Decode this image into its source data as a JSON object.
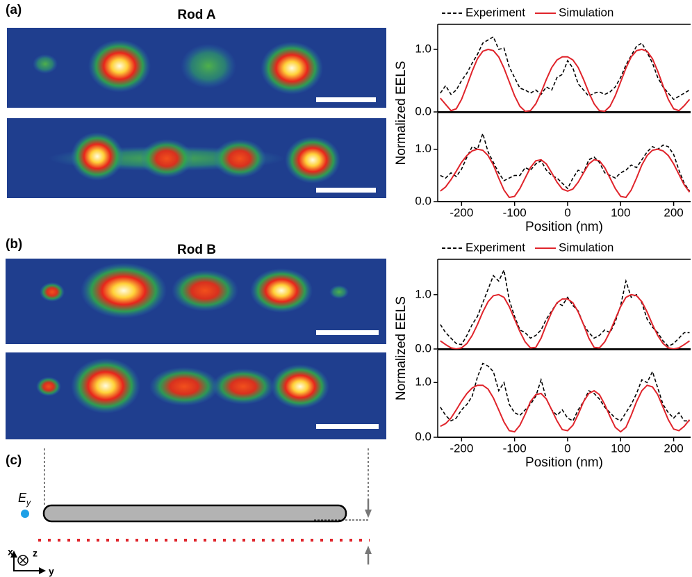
{
  "figure": {
    "panels": [
      "(a)",
      "(b)",
      "(c)"
    ],
    "rod_titles": [
      "Rod A",
      "Rod B"
    ],
    "diagram": {
      "field": "E",
      "field_sub": "y",
      "axis_x": "x",
      "axis_z": "z",
      "axis_y": "y"
    }
  },
  "chart_data": [
    {
      "type": "line",
      "ylabel": "Normalized EELS",
      "legend": "top",
      "x": [
        -240,
        -230,
        -220,
        -210,
        -200,
        -190,
        -180,
        -170,
        -160,
        -150,
        -140,
        -130,
        -120,
        -110,
        -100,
        -90,
        -80,
        -70,
        -60,
        -50,
        -40,
        -30,
        -20,
        -10,
        0,
        10,
        20,
        30,
        40,
        50,
        60,
        70,
        80,
        90,
        100,
        110,
        120,
        130,
        140,
        150,
        160,
        170,
        180,
        190,
        200,
        210,
        220,
        230
      ],
      "xlim": [
        -245,
        232
      ],
      "ylim": [
        0,
        1.4
      ],
      "yticks": [
        {
          "value": 0,
          "label": "0.0"
        },
        {
          "value": 1,
          "label": "1.0"
        }
      ],
      "series": [
        {
          "name": "Experiment",
          "color": "#000000",
          "linestyle": "dashed",
          "values": [
            0.3,
            0.42,
            0.28,
            0.35,
            0.5,
            0.62,
            0.78,
            0.92,
            1.1,
            1.15,
            1.2,
            1.0,
            1.02,
            0.72,
            0.55,
            0.38,
            0.35,
            0.3,
            0.35,
            0.28,
            0.4,
            0.35,
            0.55,
            0.6,
            0.82,
            0.7,
            0.45,
            0.35,
            0.25,
            0.3,
            0.32,
            0.28,
            0.32,
            0.4,
            0.55,
            0.75,
            0.9,
            1.05,
            1.1,
            0.95,
            0.78,
            0.55,
            0.4,
            0.3,
            0.2,
            0.25,
            0.3,
            0.35
          ]
        },
        {
          "name": "Simulation",
          "color": "#e0242b",
          "linestyle": "solid",
          "values": [
            0.22,
            0.12,
            0.02,
            0.05,
            0.2,
            0.42,
            0.65,
            0.85,
            0.97,
            1.0,
            0.98,
            0.88,
            0.7,
            0.48,
            0.26,
            0.09,
            0.01,
            0.02,
            0.13,
            0.31,
            0.52,
            0.71,
            0.83,
            0.88,
            0.88,
            0.83,
            0.71,
            0.52,
            0.31,
            0.13,
            0.02,
            0.01,
            0.09,
            0.26,
            0.48,
            0.7,
            0.88,
            0.98,
            1.0,
            0.97,
            0.85,
            0.65,
            0.42,
            0.2,
            0.05,
            0.02,
            0.1,
            0.2
          ]
        }
      ]
    },
    {
      "type": "line",
      "xlabel": "Position (nm)",
      "x": [
        -240,
        -230,
        -220,
        -210,
        -200,
        -190,
        -180,
        -170,
        -160,
        -150,
        -140,
        -130,
        -120,
        -110,
        -100,
        -90,
        -80,
        -70,
        -60,
        -50,
        -40,
        -30,
        -20,
        -10,
        0,
        10,
        20,
        30,
        40,
        50,
        60,
        70,
        80,
        90,
        100,
        110,
        120,
        130,
        140,
        150,
        160,
        170,
        180,
        190,
        200,
        210,
        220,
        230
      ],
      "xlim": [
        -245,
        232
      ],
      "ylim": [
        0,
        1.7
      ],
      "xticks": [
        -200,
        -100,
        0,
        100,
        200
      ],
      "yticks": [
        {
          "value": 0,
          "label": "0.0"
        },
        {
          "value": 1,
          "label": "1.0"
        }
      ],
      "series": [
        {
          "color": "#000000",
          "linestyle": "dashed",
          "values": [
            0.5,
            0.45,
            0.55,
            0.48,
            0.62,
            0.85,
            1.05,
            1.0,
            1.3,
            0.95,
            0.75,
            0.55,
            0.4,
            0.45,
            0.5,
            0.5,
            0.65,
            0.6,
            0.72,
            0.78,
            0.6,
            0.5,
            0.45,
            0.35,
            0.25,
            0.45,
            0.6,
            0.55,
            0.8,
            0.85,
            0.75,
            0.55,
            0.5,
            0.45,
            0.55,
            0.6,
            0.7,
            0.65,
            0.8,
            0.95,
            1.05,
            1.0,
            1.08,
            1.05,
            0.9,
            0.6,
            0.35,
            0.2
          ]
        },
        {
          "color": "#e0242b",
          "linestyle": "solid",
          "values": [
            0.2,
            0.28,
            0.42,
            0.58,
            0.75,
            0.88,
            0.97,
            1.0,
            0.98,
            0.88,
            0.7,
            0.45,
            0.22,
            0.08,
            0.1,
            0.25,
            0.45,
            0.65,
            0.78,
            0.8,
            0.72,
            0.55,
            0.37,
            0.24,
            0.2,
            0.24,
            0.37,
            0.55,
            0.72,
            0.8,
            0.78,
            0.65,
            0.45,
            0.25,
            0.1,
            0.08,
            0.22,
            0.45,
            0.7,
            0.88,
            0.98,
            1.0,
            0.97,
            0.88,
            0.72,
            0.52,
            0.32,
            0.18
          ]
        }
      ]
    },
    {
      "type": "line",
      "ylabel": "Normalized EELS",
      "legend": "top",
      "x": [
        -240,
        -230,
        -220,
        -210,
        -200,
        -190,
        -180,
        -170,
        -160,
        -150,
        -140,
        -130,
        -120,
        -110,
        -100,
        -90,
        -80,
        -70,
        -60,
        -50,
        -40,
        -30,
        -20,
        -10,
        0,
        10,
        20,
        30,
        40,
        50,
        60,
        70,
        80,
        90,
        100,
        110,
        120,
        130,
        140,
        150,
        160,
        170,
        180,
        190,
        200,
        210,
        220,
        230
      ],
      "xlim": [
        -245,
        232
      ],
      "ylim": [
        0,
        1.65
      ],
      "yticks": [
        {
          "value": 0,
          "label": "0.0"
        },
        {
          "value": 1,
          "label": "1.0"
        }
      ],
      "series": [
        {
          "name": "Experiment",
          "color": "#000000",
          "linestyle": "dashed",
          "values": [
            0.45,
            0.3,
            0.2,
            0.1,
            0.08,
            0.25,
            0.45,
            0.6,
            0.85,
            1.1,
            1.35,
            1.25,
            1.45,
            0.9,
            0.6,
            0.35,
            0.3,
            0.2,
            0.25,
            0.35,
            0.55,
            0.7,
            0.85,
            0.8,
            0.95,
            0.8,
            0.7,
            0.45,
            0.3,
            0.2,
            0.25,
            0.35,
            0.3,
            0.5,
            0.8,
            1.25,
            0.95,
            1.0,
            0.85,
            0.55,
            0.4,
            0.3,
            0.15,
            0.05,
            0.1,
            0.2,
            0.3,
            0.3
          ]
        },
        {
          "name": "Simulation",
          "color": "#e0242b",
          "linestyle": "solid",
          "values": [
            0.15,
            0.08,
            0.02,
            0.0,
            0.02,
            0.1,
            0.25,
            0.45,
            0.68,
            0.87,
            0.98,
            1.0,
            0.95,
            0.78,
            0.55,
            0.32,
            0.13,
            0.02,
            0.03,
            0.2,
            0.45,
            0.68,
            0.85,
            0.92,
            0.92,
            0.85,
            0.68,
            0.45,
            0.2,
            0.03,
            0.02,
            0.13,
            0.32,
            0.55,
            0.78,
            0.95,
            1.0,
            0.98,
            0.87,
            0.68,
            0.45,
            0.25,
            0.1,
            0.02,
            0.0,
            0.02,
            0.08,
            0.15
          ]
        }
      ]
    },
    {
      "type": "line",
      "xlabel": "Position (nm)",
      "x": [
        -240,
        -230,
        -220,
        -210,
        -200,
        -190,
        -180,
        -170,
        -160,
        -150,
        -140,
        -130,
        -120,
        -110,
        -100,
        -90,
        -80,
        -70,
        -60,
        -50,
        -40,
        -30,
        -20,
        -10,
        0,
        10,
        20,
        30,
        40,
        50,
        60,
        70,
        80,
        90,
        100,
        110,
        120,
        130,
        140,
        150,
        160,
        170,
        180,
        190,
        200,
        210,
        220,
        230
      ],
      "xlim": [
        -245,
        232
      ],
      "ylim": [
        0,
        1.6
      ],
      "xticks": [
        -200,
        -100,
        0,
        100,
        200
      ],
      "yticks": [
        {
          "value": 0,
          "label": "0.0"
        },
        {
          "value": 1,
          "label": "1.0"
        }
      ],
      "series": [
        {
          "color": "#000000",
          "linestyle": "dashed",
          "values": [
            0.55,
            0.4,
            0.3,
            0.35,
            0.5,
            0.6,
            0.75,
            1.1,
            1.35,
            1.3,
            1.2,
            0.85,
            1.0,
            0.6,
            0.45,
            0.4,
            0.5,
            0.6,
            0.75,
            1.05,
            0.7,
            0.5,
            0.4,
            0.5,
            0.35,
            0.3,
            0.5,
            0.65,
            0.85,
            0.8,
            0.7,
            0.55,
            0.45,
            0.35,
            0.3,
            0.45,
            0.6,
            0.8,
            1.05,
            1.0,
            1.2,
            0.9,
            0.6,
            0.45,
            0.35,
            0.45,
            0.3,
            0.3
          ]
        },
        {
          "color": "#e0242b",
          "linestyle": "solid",
          "values": [
            0.2,
            0.25,
            0.35,
            0.5,
            0.66,
            0.8,
            0.9,
            0.95,
            0.95,
            0.88,
            0.72,
            0.5,
            0.28,
            0.12,
            0.1,
            0.22,
            0.42,
            0.65,
            0.78,
            0.8,
            0.7,
            0.5,
            0.3,
            0.14,
            0.12,
            0.22,
            0.42,
            0.65,
            0.8,
            0.85,
            0.78,
            0.6,
            0.38,
            0.18,
            0.1,
            0.18,
            0.4,
            0.65,
            0.85,
            0.95,
            0.92,
            0.78,
            0.55,
            0.32,
            0.15,
            0.12,
            0.2,
            0.32
          ]
        }
      ]
    }
  ]
}
